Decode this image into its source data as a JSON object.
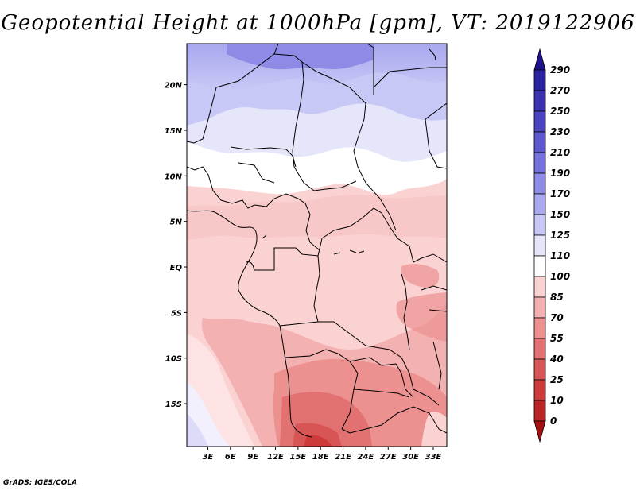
{
  "title": "Geopotential Height at 1000hPa [gpm], VT: 2019122906",
  "credit": "GrADS: IGES/COLA",
  "map": {
    "lat_labels": [
      "20N",
      "15N",
      "10N",
      "5N",
      "EQ",
      "5S",
      "10S",
      "15S"
    ],
    "lat_values": [
      20,
      15,
      10,
      5,
      0,
      -5,
      -10,
      -15
    ],
    "lon_labels": [
      "3E",
      "6E",
      "9E",
      "12E",
      "15E",
      "18E",
      "21E",
      "24E",
      "27E",
      "30E",
      "33E"
    ],
    "lon_values": [
      3,
      6,
      9,
      12,
      15,
      18,
      21,
      24,
      27,
      30,
      33
    ],
    "lat_range": [
      -19.7,
      24.5
    ],
    "lon_range": [
      0.2,
      34.8
    ]
  },
  "colorbar": {
    "labels": [
      "290",
      "270",
      "250",
      "230",
      "210",
      "190",
      "170",
      "150",
      "125",
      "110",
      "100",
      "85",
      "70",
      "55",
      "40",
      "25",
      "10",
      "0"
    ],
    "colors": [
      "#1e1290",
      "#2a219e",
      "#3a30b0",
      "#4b43c0",
      "#5e58cf",
      "#7470dc",
      "#8e8be6",
      "#aaa9ef",
      "#c8c8f6",
      "#e6e6fb",
      "#ffffff",
      "#fbd2d2",
      "#f4b1b1",
      "#ec9090",
      "#e27272",
      "#d85555",
      "#cc3a3a",
      "#bb2424",
      "#a51010"
    ]
  }
}
